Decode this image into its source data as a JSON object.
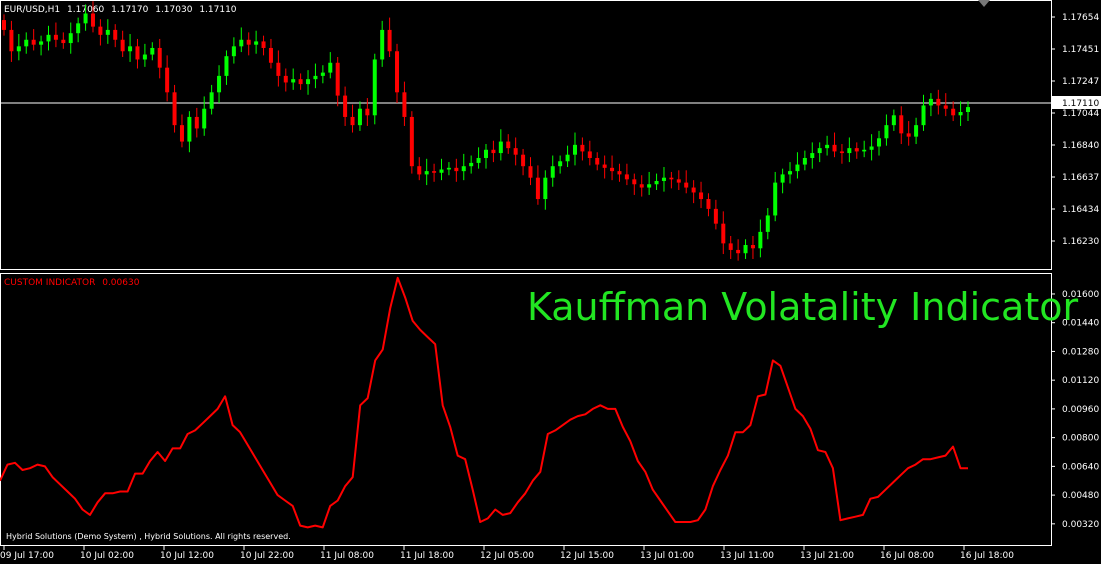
{
  "header": {
    "symbol": "EUR/USD,H1",
    "open": "1.17060",
    "high": "1.17170",
    "low": "1.17030",
    "close": "1.17110"
  },
  "price_axis": {
    "labels": [
      "1.17654",
      "1.17451",
      "1.17247",
      "1.17044",
      "1.16840",
      "1.16637",
      "1.16434",
      "1.16230"
    ],
    "current_price_label": "1.17110"
  },
  "indicator": {
    "label": "CUSTOM INDICATOR",
    "value": "0.00630",
    "axis_labels": [
      "0.01600",
      "0.01440",
      "0.01280",
      "0.01120",
      "0.00960",
      "0.00800",
      "0.00640",
      "0.00480",
      "0.00320"
    ],
    "overlay_title": "Kauffman Volatality Indicator"
  },
  "time_axis": {
    "labels": [
      "09 Jul 17:00",
      "10 Jul 02:00",
      "10 Jul 12:00",
      "10 Jul 22:00",
      "11 Jul 08:00",
      "11 Jul 18:00",
      "12 Jul 05:00",
      "12 Jul 15:00",
      "13 Jul 01:00",
      "13 Jul 11:00",
      "13 Jul 21:00",
      "16 Jul 08:00",
      "16 Jul 18:00"
    ]
  },
  "copyright": "Hybrid Solutions (Demo System) , Hybrid Solutions. All rights reserved.",
  "colors": {
    "bull": "#00ff00",
    "bear": "#ff0000",
    "indicator": "#ff0000",
    "title": "#22e622",
    "grid": "#ffffff"
  },
  "chart_data": [
    {
      "type": "candlestick",
      "ylim": [
        1.1613,
        1.1775
      ],
      "closes": [
        1.1758,
        1.1745,
        1.1748,
        1.1752,
        1.1749,
        1.1751,
        1.1755,
        1.1752,
        1.175,
        1.1756,
        1.1762,
        1.1768,
        1.176,
        1.1755,
        1.1758,
        1.1752,
        1.1745,
        1.1748,
        1.174,
        1.1743,
        1.1747,
        1.1735,
        1.172,
        1.17,
        1.169,
        1.1705,
        1.1698,
        1.171,
        1.172,
        1.173,
        1.1742,
        1.1748,
        1.1752,
        1.1749,
        1.1751,
        1.1747,
        1.1738,
        1.173,
        1.1726,
        1.1728,
        1.1725,
        1.1728,
        1.173,
        1.1732,
        1.1738,
        1.1718,
        1.1705,
        1.17,
        1.171,
        1.1706,
        1.174,
        1.1758,
        1.1745,
        1.172,
        1.1705,
        1.1675,
        1.167,
        1.1672,
        1.1671,
        1.1673,
        1.1674,
        1.1672,
        1.1675,
        1.1677,
        1.168,
        1.1685,
        1.1683,
        1.169,
        1.1686,
        1.1682,
        1.1675,
        1.1668,
        1.1655,
        1.1668,
        1.1675,
        1.1678,
        1.1682,
        1.1688,
        1.1684,
        1.168,
        1.1676,
        1.1674,
        1.1672,
        1.167,
        1.1667,
        1.1664,
        1.1662,
        1.1664,
        1.1666,
        1.1668,
        1.1667,
        1.1665,
        1.1662,
        1.1659,
        1.1655,
        1.1649,
        1.164,
        1.1628,
        1.1624,
        1.1622,
        1.1627,
        1.1625,
        1.1635,
        1.1645,
        1.1665,
        1.167,
        1.1672,
        1.1676,
        1.168,
        1.1683,
        1.1686,
        1.1688,
        1.1684,
        1.1683,
        1.1686,
        1.1684,
        1.1685,
        1.1687,
        1.1692,
        1.17,
        1.1706,
        1.1695,
        1.1693,
        1.17,
        1.1712,
        1.1716,
        1.1712,
        1.171,
        1.1706,
        1.1708,
        1.1711
      ]
    },
    {
      "type": "line",
      "name": "CUSTOM INDICATOR",
      "ylim": [
        0.0023,
        0.017
      ],
      "values": [
        0.0056,
        0.0065,
        0.0066,
        0.0062,
        0.0063,
        0.0065,
        0.0064,
        0.0058,
        0.0054,
        0.005,
        0.0046,
        0.004,
        0.0037,
        0.0044,
        0.0049,
        0.0049,
        0.005,
        0.005,
        0.006,
        0.006,
        0.0067,
        0.0072,
        0.0067,
        0.0074,
        0.0074,
        0.0082,
        0.0084,
        0.0088,
        0.0092,
        0.0096,
        0.0103,
        0.0087,
        0.0083,
        0.0076,
        0.0069,
        0.0062,
        0.0055,
        0.0048,
        0.0045,
        0.0042,
        0.0031,
        0.003,
        0.0031,
        0.003,
        0.0042,
        0.0045,
        0.0053,
        0.0058,
        0.0098,
        0.0102,
        0.0123,
        0.0129,
        0.0152,
        0.0169,
        0.0158,
        0.0145,
        0.014,
        0.0136,
        0.0132,
        0.0098,
        0.0086,
        0.007,
        0.0068,
        0.0051,
        0.0033,
        0.0035,
        0.004,
        0.0037,
        0.0038,
        0.0044,
        0.0049,
        0.0056,
        0.0061,
        0.0082,
        0.0084,
        0.0087,
        0.009,
        0.0092,
        0.0093,
        0.0096,
        0.0098,
        0.0096,
        0.0096,
        0.0086,
        0.0078,
        0.0067,
        0.0061,
        0.0051,
        0.0045,
        0.0039,
        0.0033,
        0.0033,
        0.0033,
        0.0034,
        0.004,
        0.0053,
        0.0062,
        0.007,
        0.0083,
        0.0083,
        0.0087,
        0.0103,
        0.0104,
        0.0123,
        0.012,
        0.0108,
        0.0096,
        0.0092,
        0.0085,
        0.0073,
        0.0072,
        0.0063,
        0.0034,
        0.0035,
        0.0036,
        0.0037,
        0.0046,
        0.0047,
        0.0051,
        0.0055,
        0.0059,
        0.0063,
        0.0065,
        0.0068,
        0.0068,
        0.0069,
        0.007,
        0.0075,
        0.0063,
        0.0063
      ]
    }
  ]
}
